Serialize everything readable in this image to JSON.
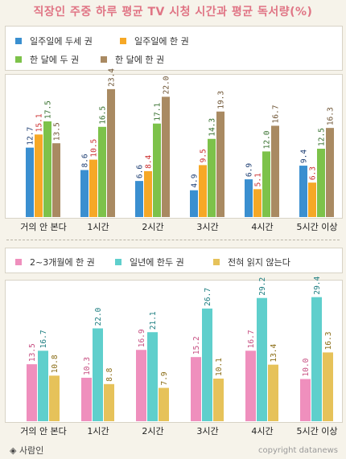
{
  "title": "직장인 주중 하루 평균 TV 시청 시간과 평균 독서량(%)",
  "footer": {
    "source": "◈ 사람인",
    "credit": "copyright datanews"
  },
  "chart_data": [
    {
      "type": "bar",
      "categories": [
        "거의 안 본다",
        "1시간",
        "2시간",
        "3시간",
        "4시간",
        "5시간 이상"
      ],
      "ylim": [
        0,
        25
      ],
      "series": [
        {
          "name": "일주일에 두세 권",
          "color": "#3a8fd0",
          "label_color": "#1f3f73",
          "values": [
            12.7,
            8.6,
            6.6,
            4.9,
            6.9,
            9.4
          ]
        },
        {
          "name": "일주일에 한 권",
          "color": "#f6a826",
          "label_color": "#cc2f2f",
          "values": [
            15.1,
            10.5,
            8.4,
            9.5,
            5.1,
            6.3
          ]
        },
        {
          "name": "한 달에 두 권",
          "color": "#7dc24a",
          "label_color": "#356f2c",
          "values": [
            17.5,
            16.5,
            17.1,
            14.3,
            12.0,
            12.5
          ]
        },
        {
          "name": "한 달에 한 권",
          "color": "#a98a62",
          "label_color": "#6e5434",
          "values": [
            13.5,
            23.4,
            22.0,
            19.3,
            16.7,
            16.3
          ]
        }
      ]
    },
    {
      "type": "bar",
      "categories": [
        "거의 안 본다",
        "1시간",
        "2시간",
        "3시간",
        "4시간",
        "5시간 이상"
      ],
      "ylim": [
        0,
        32
      ],
      "series": [
        {
          "name": "2~3개월에 한 권",
          "color": "#ef8fbd",
          "label_color": "#c64d80",
          "values": [
            13.5,
            10.3,
            16.9,
            15.2,
            16.7,
            10.0
          ]
        },
        {
          "name": "일년에 한두 권",
          "color": "#5fcfcc",
          "label_color": "#1c7d80",
          "values": [
            16.7,
            22.0,
            21.1,
            26.7,
            29.2,
            29.4
          ]
        },
        {
          "name": "전혀 읽지 않는다",
          "color": "#e6c25a",
          "label_color": "#8a6c15",
          "values": [
            10.8,
            8.8,
            7.9,
            10.1,
            13.4,
            16.3
          ]
        }
      ]
    }
  ]
}
